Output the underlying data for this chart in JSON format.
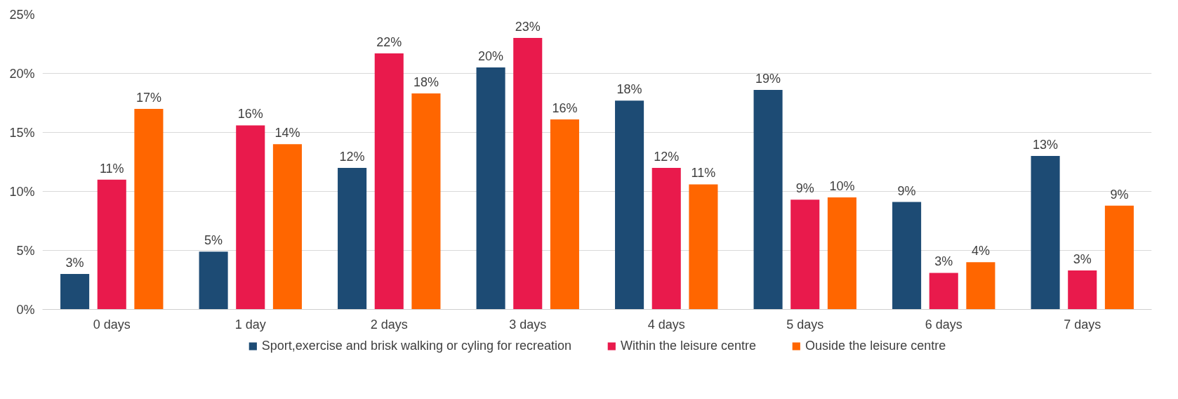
{
  "chart_data": {
    "type": "bar",
    "categories": [
      "0 days",
      "1 day",
      "2 days",
      "3 days",
      "4 days",
      "5 days",
      "6 days",
      "7 days"
    ],
    "series": [
      {
        "name": "Sport,exercise and brisk walking or cyling for recreation",
        "color": "#1d4b74",
        "values": [
          3.0,
          4.9,
          12.0,
          20.5,
          17.7,
          18.6,
          9.1,
          13.0
        ],
        "value_labels": [
          "3%",
          "5%",
          "12%",
          "20%",
          "18%",
          "19%",
          "9%",
          "13%"
        ]
      },
      {
        "name": "Within the leisure centre",
        "color": "#e91a4c",
        "values": [
          11.0,
          15.6,
          21.7,
          23.0,
          12.0,
          9.3,
          3.1,
          3.3
        ],
        "value_labels": [
          "11%",
          "16%",
          "22%",
          "23%",
          "12%",
          "9%",
          "3%",
          "3%"
        ]
      },
      {
        "name": "Ouside the leisure centre",
        "color": "#ff6600",
        "values": [
          17.0,
          14.0,
          18.3,
          16.1,
          10.6,
          9.5,
          4.0,
          8.8
        ],
        "value_labels": [
          "17%",
          "14%",
          "18%",
          "16%",
          "11%",
          "10%",
          "4%",
          "9%"
        ]
      }
    ],
    "ylim": [
      0,
      25
    ],
    "yticks": [
      {
        "value": 0,
        "label": "0%"
      },
      {
        "value": 5,
        "label": "5%"
      },
      {
        "value": 10,
        "label": "10%"
      },
      {
        "value": 15,
        "label": "15%"
      },
      {
        "value": 20,
        "label": "20%"
      },
      {
        "value": 25,
        "label": "25%"
      }
    ],
    "grid": "y",
    "legend": "bottom"
  }
}
